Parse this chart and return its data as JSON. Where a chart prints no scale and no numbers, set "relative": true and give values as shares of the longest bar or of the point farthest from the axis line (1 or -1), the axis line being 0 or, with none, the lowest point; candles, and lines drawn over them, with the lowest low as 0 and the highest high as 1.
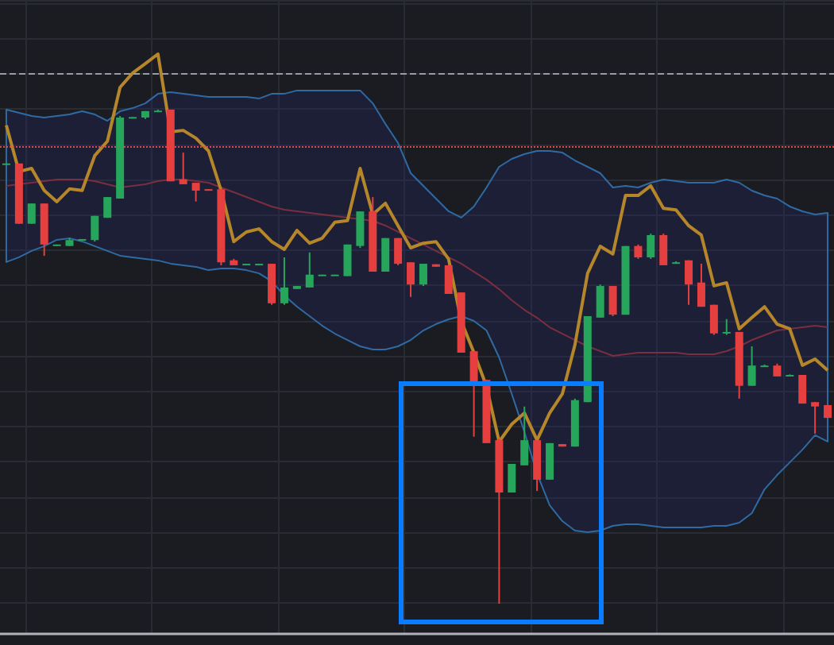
{
  "chart_data": [
    {
      "type": "candlestick",
      "relative": true,
      "tick_labels": false,
      "categories": [
        null,
        null,
        null,
        null,
        null,
        null,
        null,
        null,
        null,
        null,
        null,
        null,
        null,
        null,
        null,
        null,
        null,
        null,
        null,
        null,
        null,
        null,
        null,
        null,
        null,
        null,
        null,
        null,
        null,
        null,
        null,
        null,
        null,
        null,
        null,
        null,
        null,
        null,
        null,
        null,
        null,
        null,
        null,
        null,
        null,
        null,
        null,
        null,
        null,
        null,
        null,
        null,
        null,
        null,
        null,
        null,
        null,
        null,
        null,
        null,
        null,
        null,
        null,
        null,
        null,
        null
      ],
      "series": [
        {
          "ohlc": [
            [
              0.89,
              0.891,
              0.89,
              0.891
            ],
            [
              0.891,
              0.891,
              0.769,
              0.769
            ],
            [
              0.769,
              0.81,
              0.769,
              0.81
            ],
            [
              0.81,
              0.81,
              0.704,
              0.727
            ],
            [
              0.724,
              0.727,
              0.724,
              0.727
            ],
            [
              0.724,
              0.74,
              0.724,
              0.736
            ],
            [
              0.735,
              0.738,
              0.735,
              0.738
            ],
            [
              0.736,
              0.785,
              0.733,
              0.785
            ],
            [
              0.781,
              0.823,
              0.781,
              0.823
            ],
            [
              0.82,
              0.987,
              0.82,
              0.984
            ],
            [
              0.982,
              0.985,
              0.982,
              0.985
            ],
            [
              0.984,
              0.997,
              0.981,
              0.997
            ],
            [
              0.995,
              1.0,
              0.995,
              0.998
            ],
            [
              1.0,
              1.0,
              0.855,
              0.855
            ],
            [
              0.859,
              0.913,
              0.849,
              0.849
            ],
            [
              0.852,
              0.852,
              0.814,
              0.836
            ],
            [
              0.839,
              0.839,
              0.837,
              0.837
            ],
            [
              0.839,
              0.839,
              0.685,
              0.691
            ],
            [
              0.695,
              0.698,
              0.685,
              0.685
            ],
            [
              0.687,
              0.688,
              0.687,
              0.688
            ],
            [
              0.687,
              0.688,
              0.687,
              0.688
            ],
            [
              0.688,
              0.688,
              0.605,
              0.608
            ],
            [
              0.608,
              0.701,
              0.605,
              0.64
            ],
            [
              0.637,
              0.643,
              0.637,
              0.643
            ],
            [
              0.64,
              0.711,
              0.64,
              0.666
            ],
            [
              0.664,
              0.666,
              0.664,
              0.666
            ],
            [
              0.664,
              0.666,
              0.664,
              0.666
            ],
            [
              0.663,
              0.727,
              0.663,
              0.727
            ],
            [
              0.724,
              0.794,
              0.72,
              0.794
            ],
            [
              0.794,
              0.823,
              0.672,
              0.672
            ],
            [
              0.672,
              0.74,
              0.672,
              0.74
            ],
            [
              0.74,
              0.74,
              0.685,
              0.688
            ],
            [
              0.691,
              0.691,
              0.621,
              0.646
            ],
            [
              0.646,
              0.688,
              0.643,
              0.688
            ],
            [
              0.687,
              0.687,
              0.682,
              0.682
            ],
            [
              0.685,
              0.685,
              0.627,
              0.627
            ],
            [
              0.63,
              0.63,
              0.508,
              0.508
            ],
            [
              0.511,
              0.511,
              0.338,
              0.45
            ],
            [
              0.453,
              0.453,
              0.325,
              0.325
            ],
            [
              0.331,
              0.334,
              0,
              0.225
            ],
            [
              0.225,
              0.283,
              0.225,
              0.283
            ],
            [
              0.28,
              0.399,
              0.28,
              0.331
            ],
            [
              0.331,
              0.331,
              0.228,
              0.251
            ],
            [
              0.251,
              0.325,
              0.251,
              0.325
            ],
            [
              0.323,
              0.323,
              0.318,
              0.318
            ],
            [
              0.318,
              0.415,
              0.318,
              0.412
            ],
            [
              0.408,
              0.582,
              0.408,
              0.582
            ],
            [
              0.579,
              0.646,
              0.579,
              0.643
            ],
            [
              0.643,
              0.643,
              0.582,
              0.585
            ],
            [
              0.585,
              0.724,
              0.585,
              0.724
            ],
            [
              0.724,
              0.727,
              0.698,
              0.701
            ],
            [
              0.701,
              0.749,
              0.698,
              0.746
            ],
            [
              0.746,
              0.749,
              0.685,
              0.685
            ],
            [
              0.69,
              0.693,
              0.688,
              0.691
            ],
            [
              0.695,
              0.695,
              0.605,
              0.646
            ],
            [
              0.65,
              0.688,
              0.601,
              0.601
            ],
            [
              0.605,
              0.605,
              0.544,
              0.547
            ],
            [
              0.548,
              0.576,
              0.544,
              0.55
            ],
            [
              0.55,
              0.55,
              0.415,
              0.441
            ],
            [
              0.441,
              0.521,
              0.441,
              0.482
            ],
            [
              0.481,
              0.484,
              0.48,
              0.482
            ],
            [
              0.482,
              0.486,
              0.46,
              0.46
            ],
            [
              0.462,
              0.464,
              0.462,
              0.463
            ],
            [
              0.463,
              0.463,
              0.405,
              0.405
            ],
            [
              0.408,
              0.408,
              0.344,
              0.399
            ],
            [
              0.402,
              0.402,
              0.376,
              0.376
            ]
          ],
          "colors": [
            "#26a65b",
            "#e5403f",
            "#26a65b",
            "#e5403f",
            "#26a65b",
            "#26a65b",
            "#26a65b",
            "#26a65b",
            "#26a65b",
            "#26a65b",
            "#26a65b",
            "#26a65b",
            "#26a65b",
            "#e5403f",
            "#e5403f",
            "#e5403f",
            "#e5403f",
            "#e5403f",
            "#e5403f",
            "#26a65b",
            "#26a65b",
            "#e5403f",
            "#26a65b",
            "#26a65b",
            "#26a65b",
            "#26a65b",
            "#26a65b",
            "#26a65b",
            "#26a65b",
            "#e5403f",
            "#26a65b",
            "#e5403f",
            "#e5403f",
            "#26a65b",
            "#e5403f",
            "#e5403f",
            "#e5403f",
            "#e5403f",
            "#e5403f",
            "#e5403f",
            "#26a65b",
            "#26a65b",
            "#e5403f",
            "#26a65b",
            "#e5403f",
            "#26a65b",
            "#26a65b",
            "#26a65b",
            "#e5403f",
            "#26a65b",
            "#e5403f",
            "#26a65b",
            "#e5403f",
            "#26a65b",
            "#e5403f",
            "#e5403f",
            "#e5403f",
            "#26a65b",
            "#e5403f",
            "#26a65b",
            "#26a65b",
            "#e5403f",
            "#26a65b",
            "#e5403f",
            "#e5403f",
            "#e5403f"
          ]
        }
      ]
    },
    {
      "type": "line",
      "relative": true,
      "tick_labels": false,
      "categories": [
        null,
        null,
        null,
        null,
        null,
        null,
        null,
        null,
        null,
        null,
        null,
        null,
        null,
        null,
        null,
        null,
        null,
        null,
        null,
        null,
        null,
        null,
        null,
        null,
        null,
        null,
        null,
        null,
        null,
        null,
        null,
        null,
        null,
        null,
        null,
        null,
        null,
        null,
        null,
        null,
        null,
        null,
        null,
        null,
        null,
        null,
        null,
        null,
        null,
        null,
        null,
        null,
        null,
        null,
        null,
        null,
        null,
        null,
        null,
        null,
        null,
        null,
        null,
        null,
        null,
        null
      ],
      "series": [
        {
          "color": "#b5862a",
          "values": [
            0.816,
            0.697,
            0.705,
            0.648,
            0.619,
            0.652,
            0.648,
            0.738,
            0.775,
            0.914,
            0.951,
            0.975,
            1,
            0.799,
            0.803,
            0.783,
            0.75,
            0.648,
            0.516,
            0.541,
            0.549,
            0.516,
            0.496,
            0.545,
            0.512,
            0.525,
            0.566,
            0.57,
            0.705,
            0.586,
            0.615,
            0.557,
            0.5,
            0.512,
            0.516,
            0.471,
            0.311,
            0.23,
            0.143,
            0,
            0.045,
            0.074,
            0.004,
            0.074,
            0.123,
            0.25,
            0.434,
            0.504,
            0.484,
            0.635,
            0.635,
            0.66,
            0.602,
            0.598,
            0.557,
            0.533,
            0.402,
            0.41,
            0.291,
            0.32,
            0.348,
            0.303,
            0.291,
            0.197,
            0.213,
            0.184
          ]
        }
      ],
      "ref_lines": [
        {
          "axis": "y",
          "value": 0.949,
          "color": "#9a9ca3",
          "line_style": "dashed"
        },
        {
          "axis": "y",
          "value": 0.758,
          "color": "#e04848",
          "line_style": "dotted"
        }
      ]
    },
    {
      "type": "line",
      "relative": true,
      "tick_labels": false,
      "grid": true,
      "categories": [
        null,
        null,
        null,
        null,
        null,
        null,
        null,
        null,
        null,
        null,
        null,
        null,
        null,
        null,
        null,
        null,
        null,
        null,
        null,
        null,
        null,
        null,
        null,
        null,
        null,
        null,
        null,
        null,
        null,
        null,
        null,
        null,
        null,
        null,
        null,
        null,
        null,
        null,
        null,
        null,
        null,
        null,
        null,
        null,
        null,
        null,
        null,
        null,
        null,
        null,
        null,
        null,
        null,
        null,
        null,
        null,
        null,
        null,
        null,
        null,
        null,
        null,
        null,
        null,
        null,
        null
      ],
      "series": [
        {
          "color": "#7a2e3f",
          "values": [
            0.964,
            0.973,
            0.982,
            0.991,
            1,
            1,
            1,
            0.991,
            0.973,
            0.955,
            0.964,
            0.973,
            0.991,
            1,
            1,
            0.991,
            0.982,
            0.955,
            0.928,
            0.901,
            0.874,
            0.847,
            0.829,
            0.82,
            0.811,
            0.802,
            0.793,
            0.784,
            0.775,
            0.766,
            0.739,
            0.703,
            0.667,
            0.631,
            0.595,
            0.559,
            0.523,
            0.477,
            0.432,
            0.378,
            0.315,
            0.261,
            0.216,
            0.162,
            0.126,
            0.09,
            0.054,
            0.027,
            0,
            0.009,
            0.018,
            0.018,
            0.018,
            0.018,
            0.009,
            0.009,
            0.009,
            0.027,
            0.054,
            0.09,
            0.117,
            0.144,
            0.153,
            0.162,
            0.171,
            0.162
          ],
          "lower": [
            0.532,
            0.559,
            0.595,
            0.622,
            0.658,
            0.667,
            0.649,
            0.622,
            0.595,
            0.568,
            0.559,
            0.55,
            0.541,
            0.523,
            0.514,
            0.505,
            0.486,
            0.495,
            0.495,
            0.486,
            0.468,
            0.423,
            0.342,
            0.279,
            0.225,
            0.171,
            0.126,
            0.09,
            0.054,
            0.036,
            0.036,
            0.054,
            0.09,
            0.144,
            0.18,
            0.207,
            0.225,
            0.198,
            0.144,
            -0.009,
            -0.216,
            -0.432,
            -0.667,
            -0.847,
            -0.937,
            -0.991,
            -1,
            -0.991,
            -0.964,
            -0.955,
            -0.955,
            -0.964,
            -0.973,
            -0.973,
            -0.973,
            -0.973,
            -0.964,
            -0.964,
            -0.946,
            -0.892,
            -0.757,
            -0.676,
            -0.604,
            -0.532,
            -0.45,
            -0.486
          ],
          "upper": [
            1.396,
            1.378,
            1.36,
            1.351,
            1.36,
            1.369,
            1.387,
            1.369,
            1.333,
            1.387,
            1.405,
            1.432,
            1.486,
            1.495,
            1.486,
            1.477,
            1.468,
            1.468,
            1.468,
            1.468,
            1.459,
            1.486,
            1.486,
            1.505,
            1.505,
            1.505,
            1.505,
            1.505,
            1.505,
            1.432,
            1.315,
            1.207,
            1.036,
            0.964,
            0.892,
            0.82,
            0.784,
            0.847,
            0.955,
            1.072,
            1.117,
            1.144,
            1.162,
            1.162,
            1.153,
            1.108,
            1.072,
            1.036,
            0.955,
            0.964,
            0.955,
            0.982,
            1,
            0.991,
            0.982,
            0.982,
            0.982,
            1,
            0.982,
            0.937,
            0.91,
            0.892,
            0.847,
            0.82,
            0.802,
            0.811
          ]
        }
      ]
    }
  ]
}
